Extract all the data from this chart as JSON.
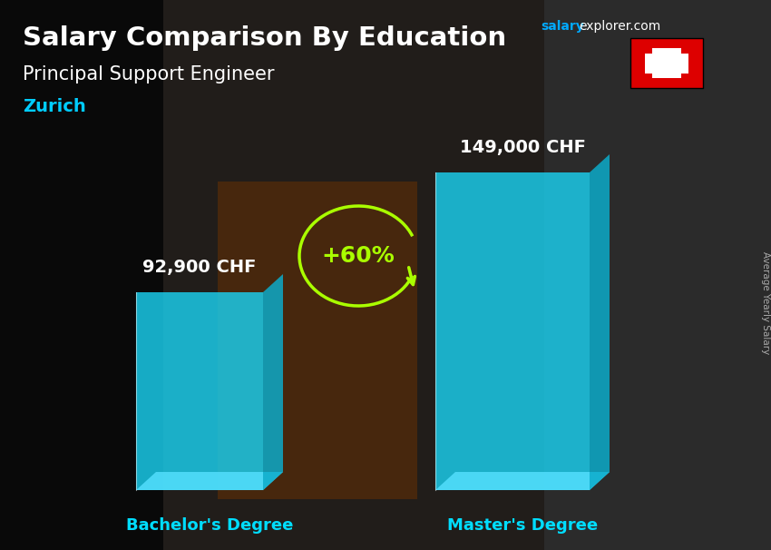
{
  "title_bold": "Salary Comparison By Education",
  "subtitle": "Principal Support Engineer",
  "location": "Zurich",
  "categories": [
    "Bachelor's Degree",
    "Master's Degree"
  ],
  "values": [
    92900,
    149000
  ],
  "value_labels": [
    "92,900 CHF",
    "149,000 CHF"
  ],
  "pct_change": "+60%",
  "bar_face_color": "#1ad0f0",
  "bar_top_color": "#55e0ff",
  "bar_side_color": "#0ab0d0",
  "bar_alpha": 0.82,
  "title_color": "#ffffff",
  "subtitle_color": "#ffffff",
  "location_color": "#00ccff",
  "value_label_color": "#ffffff",
  "category_label_color": "#00ddff",
  "pct_color": "#aaff00",
  "axis_label": "Average Yearly Salary",
  "site_salary_color": "#00aaff",
  "site_explorer_color": "#ffffff",
  "flag_bg": "#dd0000",
  "bg_dark_color": "#1a1a1a",
  "bg_mid_color": "#3a3a3a",
  "bg_right_color": "#4a4a4a"
}
